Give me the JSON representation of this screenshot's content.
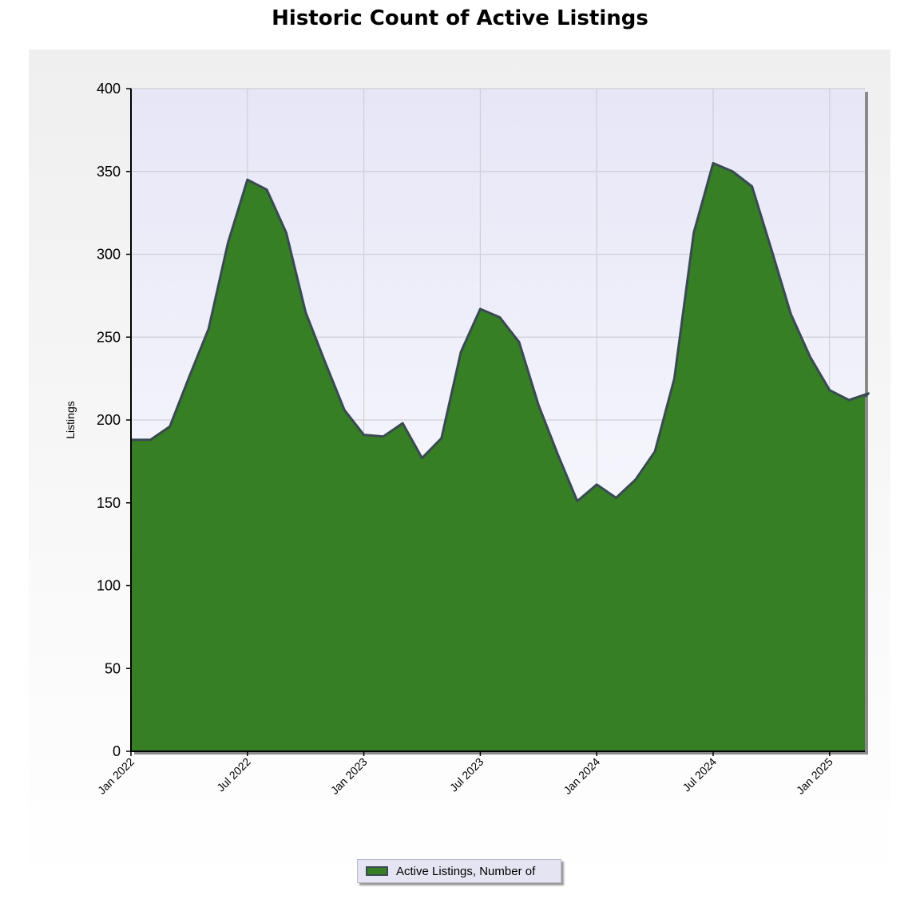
{
  "chart_data": {
    "type": "area",
    "title": "Historic Count of Active Listings",
    "xlabel": "",
    "ylabel": "Listings",
    "ylim": [
      0,
      400
    ],
    "yticks": [
      0,
      50,
      100,
      150,
      200,
      250,
      300,
      350,
      400
    ],
    "xticks": [
      "Jan 2022",
      "Jul 2022",
      "Jan 2023",
      "Jul 2023",
      "Jan 2024",
      "Jul 2024",
      "Jan 2025"
    ],
    "grid": true,
    "legend_position": "bottom-center",
    "colors": {
      "area_fill": "#377f24",
      "area_line": "#3a4a52",
      "plot_bg_top": "#e6e6f7",
      "plot_bg_bottom": "#ffffff"
    },
    "x": [
      "Jan 2022",
      "Feb 2022",
      "Mar 2022",
      "Apr 2022",
      "May 2022",
      "Jun 2022",
      "Jul 2022",
      "Aug 2022",
      "Sep 2022",
      "Oct 2022",
      "Nov 2022",
      "Dec 2022",
      "Jan 2023",
      "Feb 2023",
      "Mar 2023",
      "Apr 2023",
      "May 2023",
      "Jun 2023",
      "Jul 2023",
      "Aug 2023",
      "Sep 2023",
      "Oct 2023",
      "Nov 2023",
      "Dec 2023",
      "Jan 2024",
      "Feb 2024",
      "Mar 2024",
      "Apr 2024",
      "May 2024",
      "Jun 2024",
      "Jul 2024",
      "Aug 2024",
      "Sep 2024",
      "Oct 2024",
      "Nov 2024",
      "Dec 2024",
      "Jan 2025",
      "Feb 2025",
      "Mar 2025"
    ],
    "series": [
      {
        "name": "Active Listings, Number of",
        "values": [
          188,
          188,
          196,
          226,
          255,
          307,
          345,
          339,
          313,
          265,
          235,
          206,
          191,
          190,
          198,
          177,
          189,
          241,
          267,
          262,
          247,
          209,
          179,
          151,
          161,
          153,
          164,
          181,
          225,
          313,
          355,
          350,
          341,
          303,
          264,
          238,
          218,
          212,
          216
        ]
      }
    ]
  }
}
